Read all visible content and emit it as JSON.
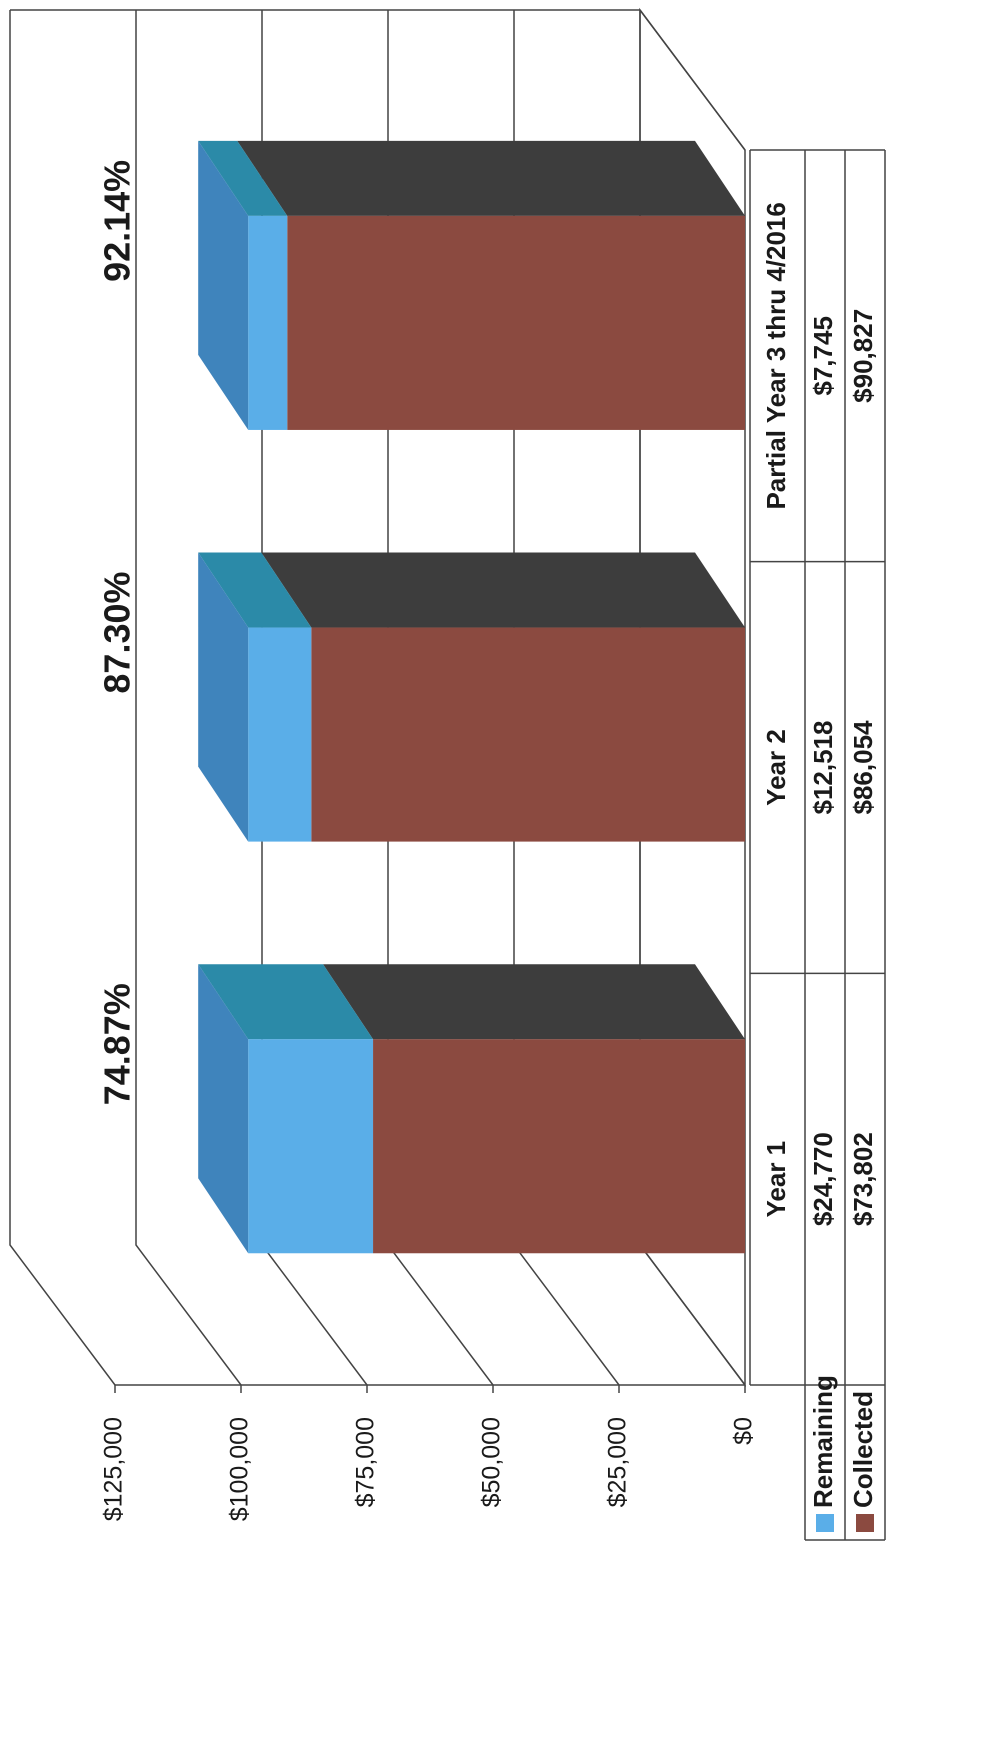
{
  "chart_data": {
    "type": "bar3d_stacked",
    "categories": [
      "Year 1",
      "Year 2",
      "Partial Year 3 thru 4/2016"
    ],
    "series": [
      {
        "name": "Remaining",
        "color": "#5aaee8",
        "values": [
          24770,
          12518,
          7745
        ],
        "value_labels": [
          "$24,770",
          "$12,518",
          "$7,745"
        ]
      },
      {
        "name": "Collected",
        "color": "#8b4a40",
        "values": [
          73802,
          86054,
          90827
        ],
        "value_labels": [
          "$73,802",
          "$86,054",
          "$90,827"
        ]
      }
    ],
    "annotations": [
      "74.87%",
      "87.30%",
      "92.14%"
    ],
    "ylim": [
      0,
      125000
    ],
    "yticks": [
      {
        "value": 0,
        "label": "$0"
      },
      {
        "value": 25000,
        "label": "$25,000"
      },
      {
        "value": 50000,
        "label": "$50,000"
      },
      {
        "value": 75000,
        "label": "$75,000"
      },
      {
        "value": 100000,
        "label": "$100,000"
      },
      {
        "value": 125000,
        "label": "$125,000"
      }
    ],
    "grid": true
  }
}
